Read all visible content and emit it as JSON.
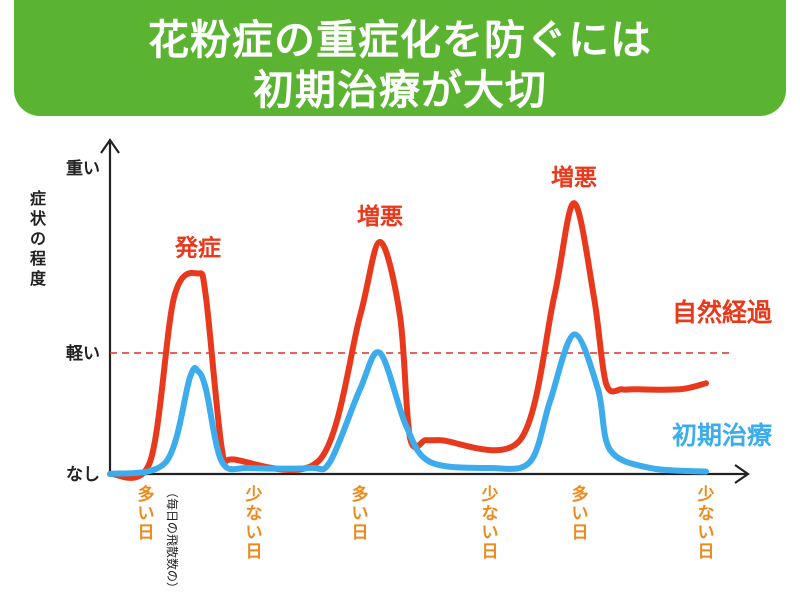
{
  "banner": {
    "line1": "花粉症の重症化を防ぐには",
    "line2": "初期治療が大切"
  },
  "colors": {
    "banner": "#5bb431",
    "natural": "#e8391d",
    "treatment": "#3dacec",
    "threshold": "#d8342a",
    "axis": "#222222",
    "xlabels": "#ec8a1d"
  },
  "chart_data": {
    "type": "line",
    "ylabel": "症状の程度",
    "yticks": [
      "なし",
      "軽い",
      "重い"
    ],
    "threshold": {
      "value": "軽い",
      "style": "dashed"
    },
    "x_categories": [
      "多い日",
      "少ない日",
      "多い日",
      "少ない日",
      "多い日",
      "少ない日"
    ],
    "x_note": "（毎日の飛散数の）",
    "y_scale": "qualitative: 0 = なし, 1 = 軽い, 2 = 重い",
    "series": [
      {
        "name": "自然経過",
        "color": "#e8391d",
        "x": [
          0,
          0.2,
          0.32,
          0.44,
          0.48,
          0.56,
          0.62,
          1.05,
          1.25,
          1.35,
          1.45,
          1.5,
          1.58,
          1.65,
          2.05,
          2.22,
          2.32,
          2.42,
          2.48,
          2.56,
          2.62,
          2.85,
          2.98
        ],
        "y": [
          0,
          0.1,
          1.3,
          1.43,
          1.3,
          0.2,
          0.12,
          0.12,
          1.2,
          1.6,
          1.2,
          0.3,
          0.28,
          0.28,
          0.28,
          1.3,
          1.81,
          1.3,
          0.75,
          0.7,
          0.7,
          0.7,
          0.75
        ],
        "annotations": [
          {
            "x": 0.44,
            "text": "発症"
          },
          {
            "x": 1.35,
            "text": "増悪"
          },
          {
            "x": 2.32,
            "text": "増悪"
          }
        ]
      },
      {
        "name": "初期治療",
        "color": "#3dacec",
        "x": [
          0,
          0.28,
          0.4,
          0.44,
          0.48,
          0.56,
          0.7,
          1.0,
          1.1,
          1.25,
          1.35,
          1.48,
          1.6,
          1.9,
          2.1,
          2.2,
          2.32,
          2.44,
          2.5,
          2.7,
          2.98
        ],
        "y": [
          0,
          0.1,
          0.8,
          0.85,
          0.7,
          0.1,
          0.05,
          0.05,
          0.1,
          0.7,
          1.0,
          0.4,
          0.1,
          0.05,
          0.1,
          0.6,
          1.1,
          0.7,
          0.2,
          0.05,
          0.02
        ]
      }
    ]
  }
}
